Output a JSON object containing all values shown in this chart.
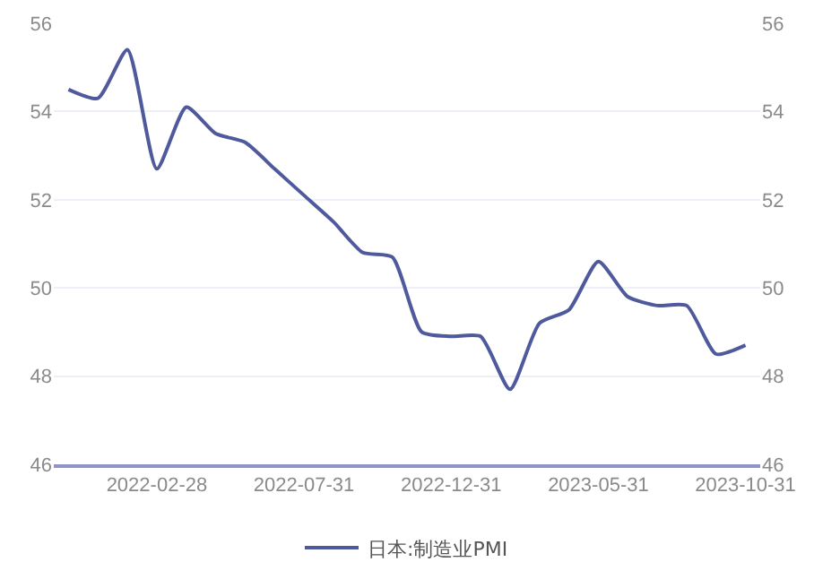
{
  "chart_data": {
    "type": "line",
    "categories": [
      null,
      null,
      null,
      "2022-02-28",
      null,
      null,
      null,
      null,
      "2022-07-31",
      null,
      null,
      null,
      null,
      "2022-12-31",
      null,
      null,
      null,
      null,
      "2023-05-31",
      null,
      null,
      null,
      null,
      "2023-10-31"
    ],
    "series": [
      {
        "name": "日本:制造业PMI",
        "color": "#4f5a9d",
        "values": [
          54.5,
          54.3,
          55.4,
          52.7,
          54.1,
          53.5,
          53.3,
          52.7,
          52.1,
          51.5,
          50.8,
          50.7,
          49.0,
          48.9,
          48.9,
          47.7,
          49.2,
          49.5,
          50.6,
          49.8,
          49.6,
          49.6,
          48.5,
          48.7
        ]
      }
    ],
    "ylim": [
      46,
      56
    ],
    "yticks": [
      46,
      48,
      50,
      52,
      54,
      56
    ],
    "y2lim": [
      46,
      56
    ],
    "y2ticks": [
      46,
      48,
      50,
      52,
      54,
      56
    ],
    "grid": "y",
    "legend": "bottom",
    "marker": "none",
    "line_style": "solid"
  }
}
